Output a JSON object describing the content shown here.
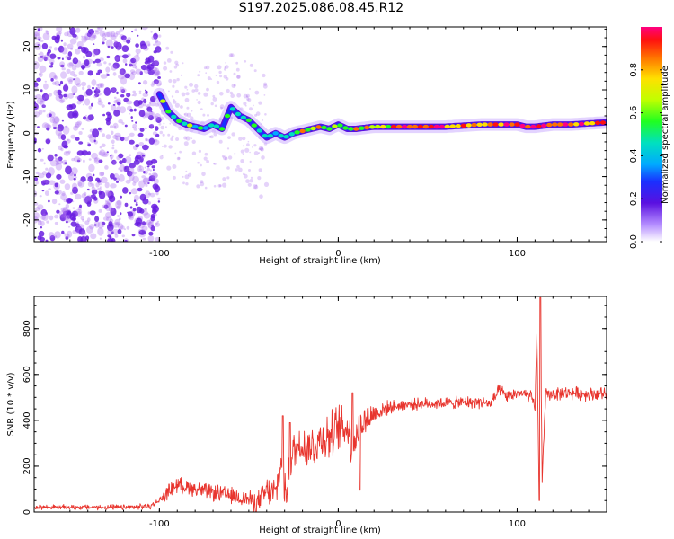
{
  "figure_title": "S197.2025.086.08.45.R12",
  "colors": {
    "snr_line": "#e8352e",
    "spec_low": "#a86ef0",
    "spec_mid": "#6a1fe0",
    "frame": "#000000"
  },
  "chart_data": [
    {
      "type": "heatmap",
      "name": "spectrogram",
      "title": "S197.2025.086.08.45.R12",
      "xlabel": "Height of straight line (km)",
      "ylabel": "Frequency (Hz)",
      "xlim": [
        -170,
        150
      ],
      "ylim": [
        -25,
        24.5
      ],
      "xticks": [
        -100,
        0,
        100
      ],
      "yticks": [
        -20,
        -10,
        0,
        10,
        20
      ],
      "ridge": {
        "x": [
          -100,
          -95,
          -90,
          -85,
          -80,
          -75,
          -70,
          -65,
          -60,
          -55,
          -50,
          -45,
          -40,
          -35,
          -30,
          -25,
          -20,
          -15,
          -10,
          -5,
          0,
          5,
          10,
          20,
          40,
          60,
          80,
          90,
          100,
          105,
          110,
          120,
          130,
          150
        ],
        "y": [
          9,
          5,
          3,
          2,
          1.5,
          1,
          2,
          1,
          6,
          4,
          3,
          1,
          -1,
          0,
          -1,
          0,
          0.5,
          1,
          1.5,
          1,
          2,
          1,
          1,
          1.5,
          1.5,
          1.5,
          2,
          2,
          2,
          1.5,
          1.5,
          2,
          2,
          2.5
        ]
      },
      "colorbar": {
        "label": "Normalized spectral amplitude",
        "range": [
          0,
          1
        ],
        "ticks": [
          "0.0",
          "0.2",
          "0.4",
          "0.6",
          "0.8"
        ],
        "tick_values": [
          0,
          0.2,
          0.4,
          0.6,
          0.8
        ]
      }
    },
    {
      "type": "line",
      "name": "snr",
      "xlabel": "Height of straight line (km)",
      "ylabel": "SNR (10 * v/v)",
      "xlim": [
        -170,
        150
      ],
      "ylim": [
        0,
        940
      ],
      "xticks": [
        -100,
        0,
        100
      ],
      "yticks": [
        0,
        200,
        400,
        600,
        800
      ],
      "envelope": {
        "x": [
          -170,
          -120,
          -105,
          -100,
          -95,
          -90,
          -80,
          -70,
          -60,
          -50,
          -45,
          -40,
          -35,
          -31,
          -30,
          -27,
          -25,
          -20,
          -15,
          -10,
          -5,
          0,
          5,
          8,
          10,
          12,
          20,
          30,
          40,
          60,
          80,
          85,
          90,
          95,
          100,
          105,
          108,
          110,
          111,
          112,
          113,
          114,
          116,
          120,
          130,
          140,
          150
        ],
        "y": [
          22,
          20,
          25,
          50,
          90,
          120,
          100,
          85,
          70,
          55,
          40,
          90,
          80,
          250,
          60,
          200,
          260,
          300,
          280,
          320,
          330,
          360,
          370,
          300,
          330,
          380,
          430,
          460,
          470,
          475,
          480,
          470,
          530,
          500,
          520,
          510,
          500,
          450,
          800,
          200,
          920,
          150,
          510,
          515,
          520,
          515,
          515
        ]
      },
      "noise_amplitude": {
        "x": [
          -170,
          -100,
          -95,
          -50,
          -35,
          -25,
          0,
          10,
          20,
          30,
          150
        ],
        "a": [
          12,
          15,
          40,
          45,
          90,
          110,
          130,
          110,
          60,
          30,
          35
        ]
      },
      "spikes": [
        {
          "x": -31,
          "y": 420
        },
        {
          "x": -27,
          "y": 390
        },
        {
          "x": 8,
          "y": 520
        },
        {
          "x": 12,
          "y": 95
        },
        {
          "x": 112.5,
          "y": 50
        },
        {
          "x": 113,
          "y": 935
        }
      ]
    }
  ]
}
